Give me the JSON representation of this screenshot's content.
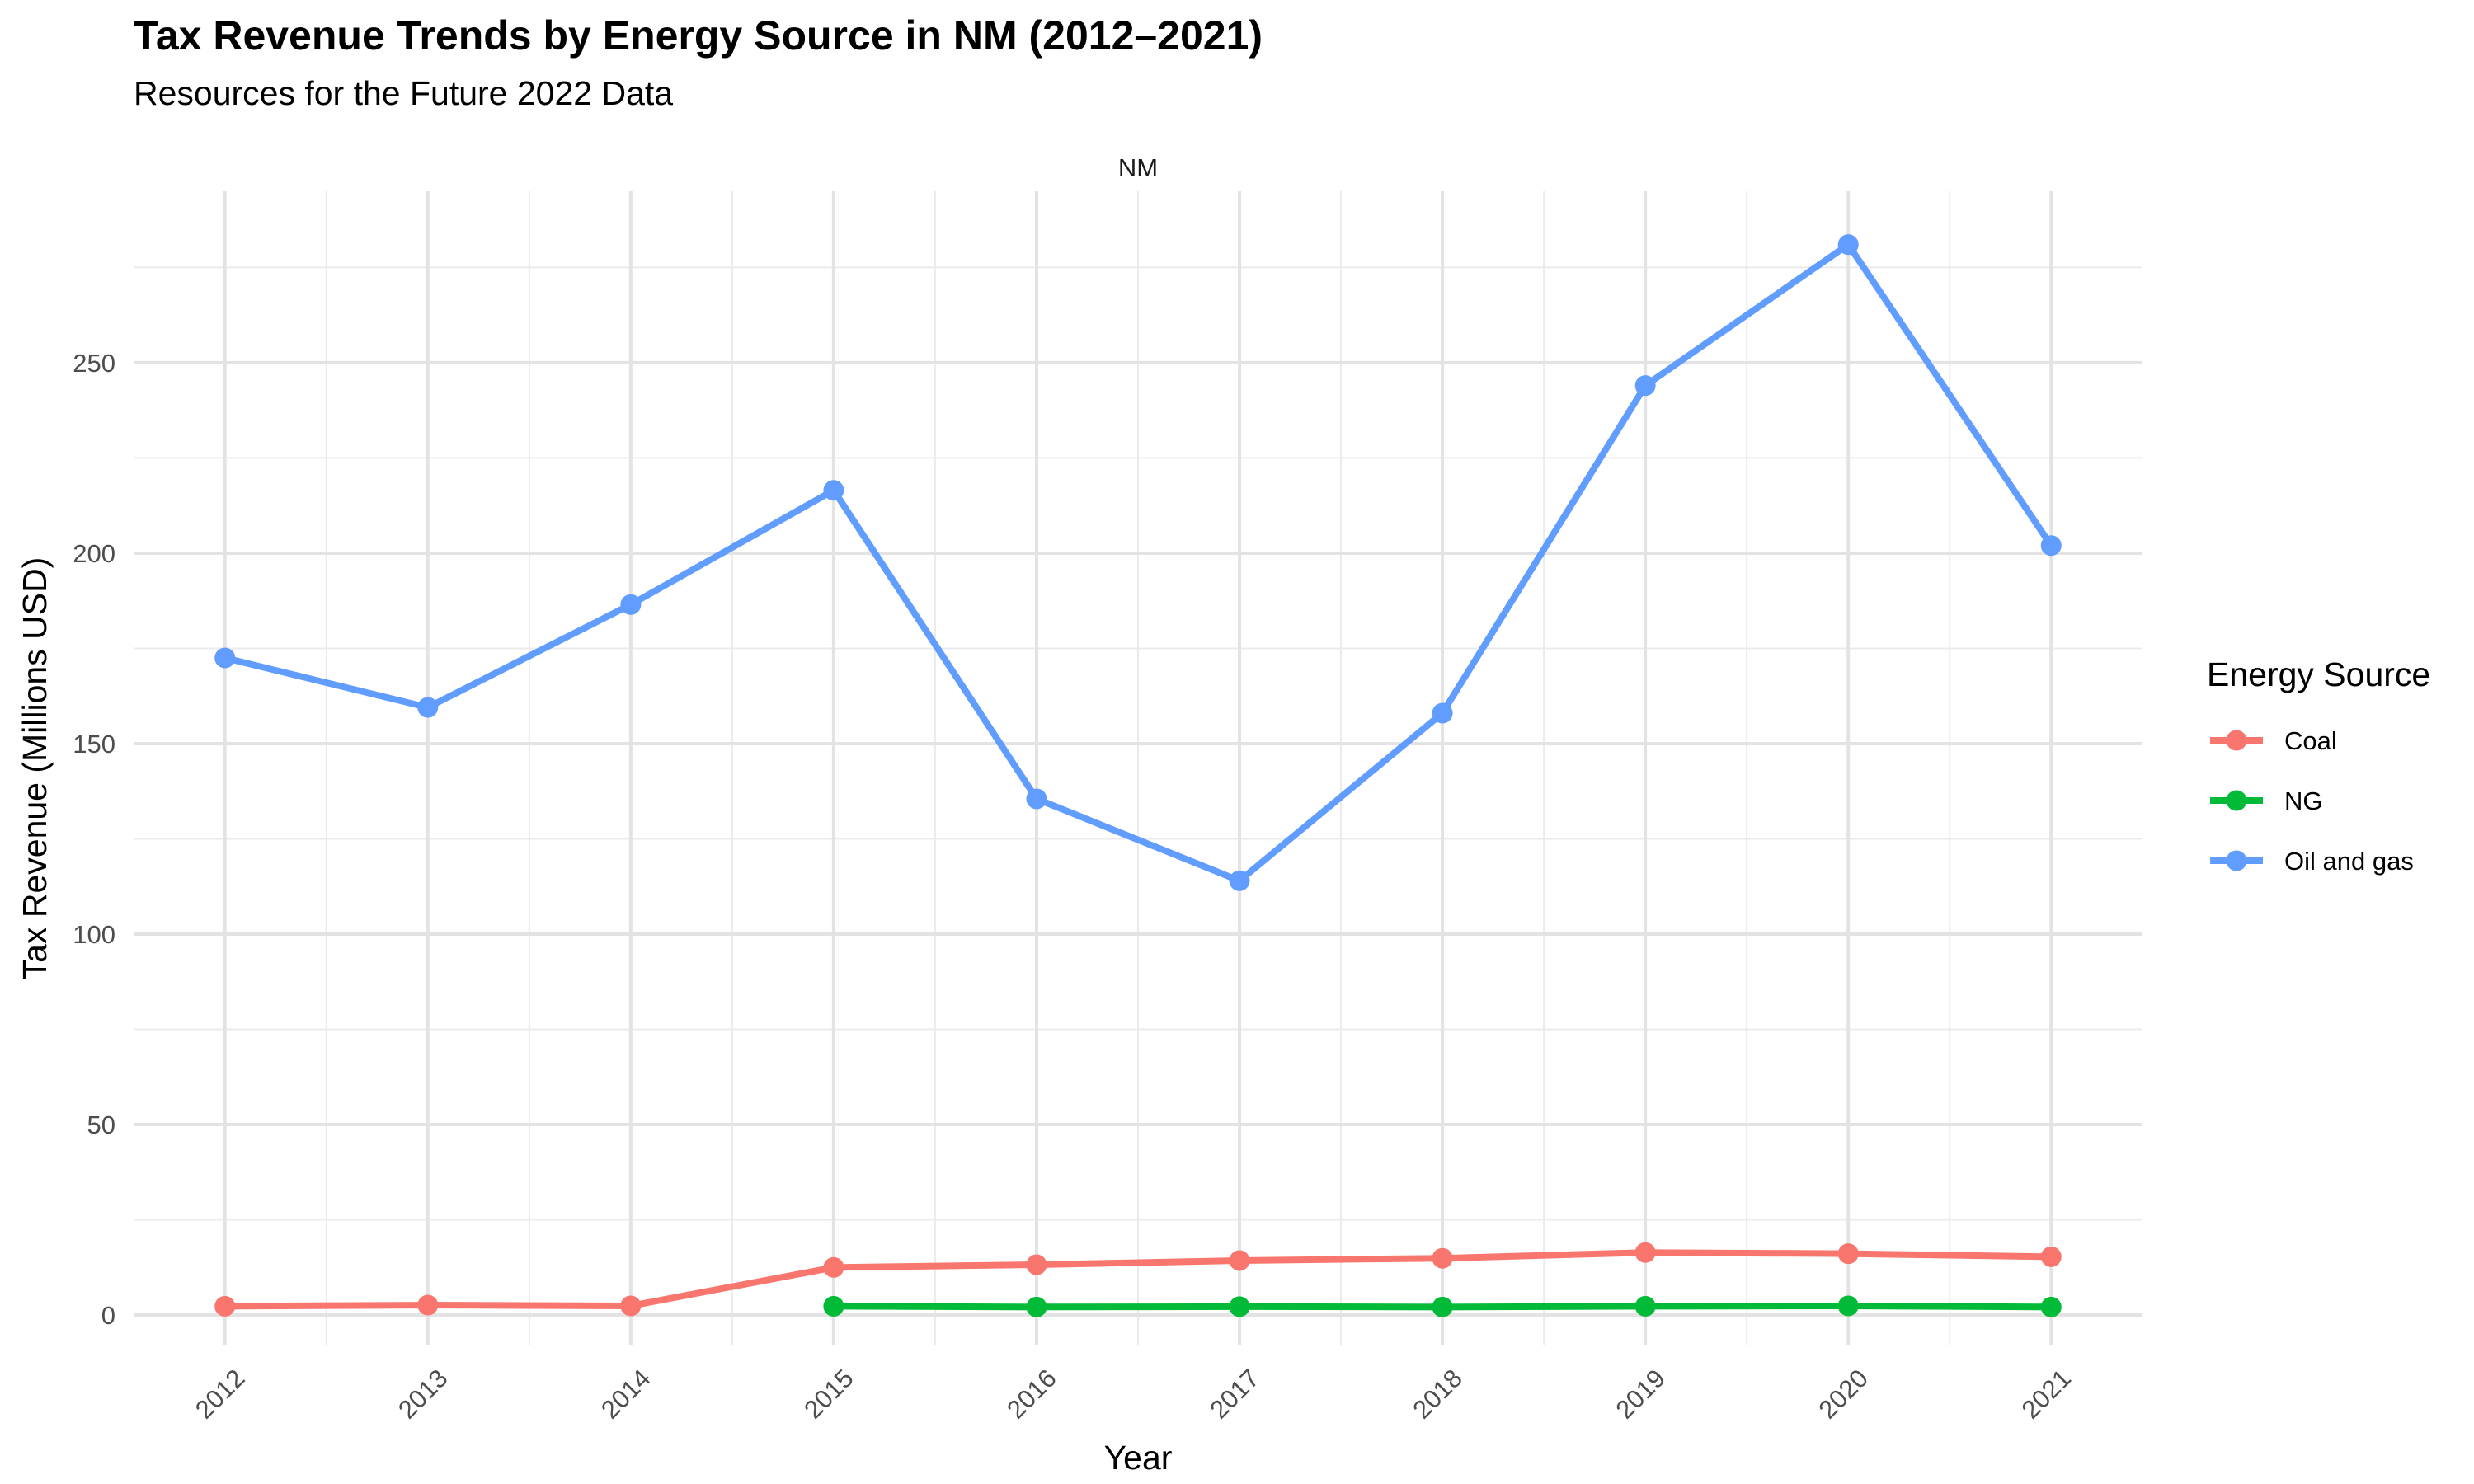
{
  "chart_data": {
    "type": "line",
    "title": "Tax Revenue Trends by Energy Source in NM (2012–2021)",
    "subtitle": "Resources for the Future 2022 Data",
    "facet_label": "NM",
    "xlabel": "Year",
    "ylabel": "Tax Revenue (Millions USD)",
    "x": [
      2012,
      2013,
      2014,
      2015,
      2016,
      2017,
      2018,
      2019,
      2020,
      2021
    ],
    "x_tick_labels": [
      "2012",
      "2013",
      "2014",
      "2015",
      "2016",
      "2017",
      "2018",
      "2019",
      "2020",
      "2021"
    ],
    "y_ticks": [
      0,
      50,
      100,
      150,
      200,
      250
    ],
    "y_tick_labels": [
      "0",
      "50",
      "100",
      "150",
      "200",
      "250"
    ],
    "ylim": [
      -8,
      295
    ],
    "grid": true,
    "legend": {
      "title": "Energy Source",
      "position": "right"
    },
    "series": [
      {
        "name": "Coal",
        "color": "#F8766D",
        "x": [
          2012,
          2013,
          2014,
          2015,
          2016,
          2017,
          2018,
          2019,
          2020,
          2021
        ],
        "values": [
          2.3,
          2.6,
          2.4,
          12.5,
          13.2,
          14.3,
          14.9,
          16.4,
          16.1,
          15.3
        ]
      },
      {
        "name": "NG",
        "color": "#00BA38",
        "x": [
          2015,
          2016,
          2017,
          2018,
          2019,
          2020,
          2021
        ],
        "values": [
          2.3,
          2.1,
          2.2,
          2.1,
          2.3,
          2.4,
          2.1
        ]
      },
      {
        "name": "Oil and gas",
        "color": "#619CFF",
        "x": [
          2012,
          2013,
          2014,
          2015,
          2016,
          2017,
          2018,
          2019,
          2020,
          2021
        ],
        "values": [
          172.5,
          159.5,
          186.5,
          216.5,
          135.5,
          114.0,
          158.0,
          244.0,
          281.0,
          202.0
        ]
      }
    ]
  }
}
